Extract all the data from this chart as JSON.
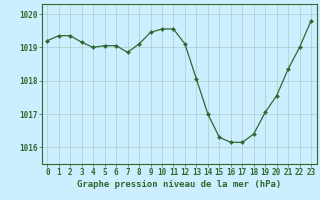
{
  "x": [
    0,
    1,
    2,
    3,
    4,
    5,
    6,
    7,
    8,
    9,
    10,
    11,
    12,
    13,
    14,
    15,
    16,
    17,
    18,
    19,
    20,
    21,
    22,
    23
  ],
  "y": [
    1019.2,
    1019.35,
    1019.35,
    1019.15,
    1019.0,
    1019.05,
    1019.05,
    1018.85,
    1019.1,
    1019.45,
    1019.55,
    1019.55,
    1019.1,
    1018.05,
    1017.0,
    1016.3,
    1016.15,
    1016.15,
    1016.4,
    1017.05,
    1017.55,
    1018.35,
    1019.0,
    1019.8
  ],
  "line_color": "#2d6a2d",
  "marker_color": "#2d6a2d",
  "background_color": "#cceeff",
  "grid_color": "#aacccc",
  "axis_color": "#2d6a2d",
  "xlabel": "Graphe pression niveau de la mer (hPa)",
  "ylim": [
    1015.5,
    1020.3
  ],
  "yticks": [
    1016,
    1017,
    1018,
    1019,
    1020
  ],
  "xticks": [
    0,
    1,
    2,
    3,
    4,
    5,
    6,
    7,
    8,
    9,
    10,
    11,
    12,
    13,
    14,
    15,
    16,
    17,
    18,
    19,
    20,
    21,
    22,
    23
  ],
  "tick_fontsize": 5.5,
  "label_fontsize": 6.5
}
